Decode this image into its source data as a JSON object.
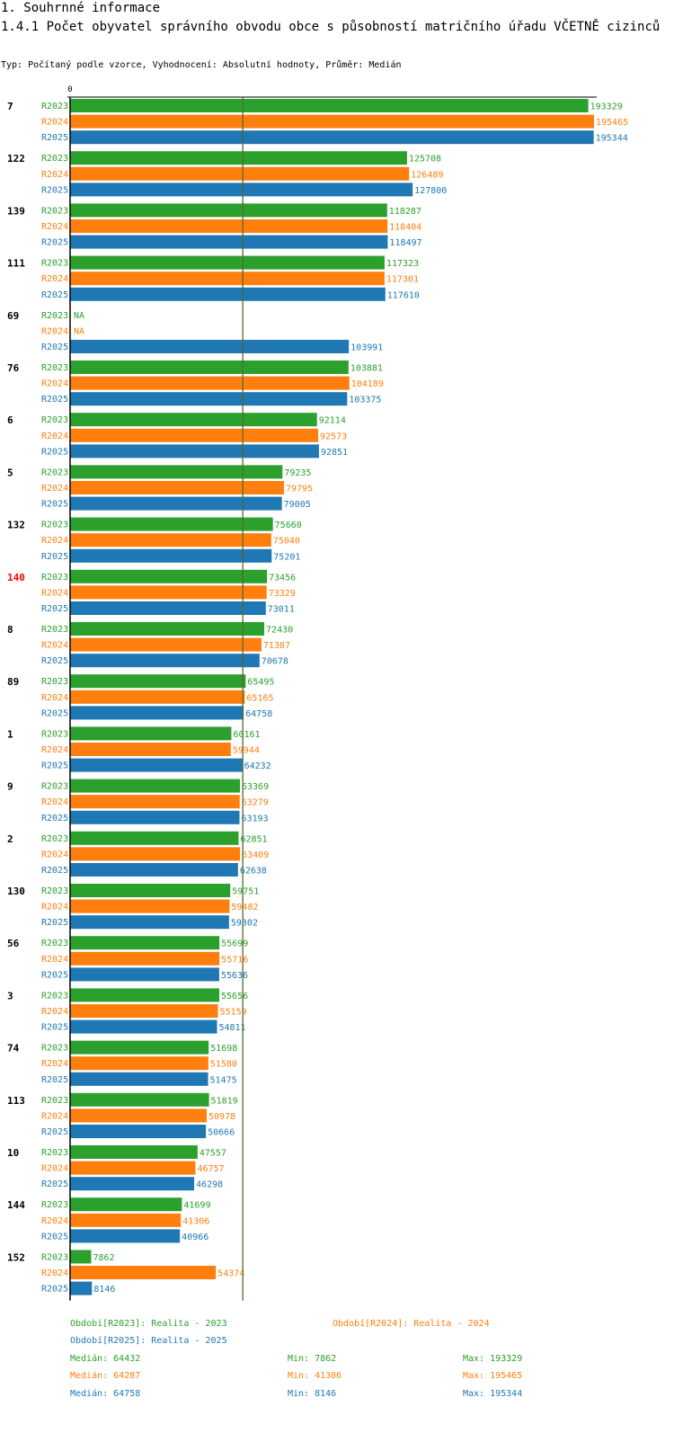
{
  "page": {
    "section_title": "1. Souhrnné informace",
    "chart_title": "1.4.1 Počet obyvatel správního obvodu obce s působností matričního úřadu VČETNĚ cizinců",
    "subtitle": "Typ: Počítaný podle vzorce, Vyhodnocení: Absolutní hodnoty, Průměr: Medián"
  },
  "colors": {
    "R2023": "#2ca02c",
    "R2024": "#ff7f0e",
    "R2025": "#1f77b4",
    "highlight": "#ff0000",
    "text": "#000000",
    "median_line": "#556b2f"
  },
  "chart_data": {
    "type": "bar",
    "orientation": "horizontal",
    "title": "1.4.1 Počet obyvatel správního obvodu obce s působností matričního úřadu VČETNĚ cizinců",
    "x_axis_label": "0",
    "xlim": [
      0,
      200000
    ],
    "median_reference": 64432,
    "highlighted_category": "140",
    "series_names": [
      "R2023",
      "R2024",
      "R2025"
    ],
    "missing_label": "NA",
    "categories": [
      "7",
      "122",
      "139",
      "111",
      "69",
      "76",
      "6",
      "5",
      "132",
      "140",
      "8",
      "89",
      "1",
      "9",
      "2",
      "130",
      "56",
      "3",
      "74",
      "113",
      "10",
      "144",
      "152"
    ],
    "series": [
      {
        "name": "R2023",
        "values": [
          193329,
          125708,
          118287,
          117323,
          null,
          103881,
          92114,
          79235,
          75660,
          73456,
          72430,
          65495,
          60161,
          63369,
          62851,
          59751,
          55699,
          55656,
          51698,
          51819,
          47557,
          41699,
          7862
        ]
      },
      {
        "name": "R2024",
        "values": [
          195465,
          126489,
          118404,
          117301,
          null,
          104189,
          92573,
          79795,
          75040,
          73329,
          71387,
          65165,
          59944,
          63279,
          63409,
          59482,
          55716,
          55159,
          51580,
          50978,
          46757,
          41306,
          54374
        ]
      },
      {
        "name": "R2025",
        "values": [
          195344,
          127800,
          118497,
          117610,
          103991,
          103375,
          92851,
          79005,
          75201,
          73011,
          70678,
          64758,
          64232,
          63193,
          62638,
          59302,
          55636,
          54811,
          51475,
          50666,
          46298,
          40966,
          8146
        ]
      }
    ]
  },
  "legend": {
    "r2023": "Období[R2023]: Realita - 2023",
    "r2024": "Období[R2024]: Realita - 2024",
    "r2025": "Období[R2025]: Realita - 2025"
  },
  "stats": {
    "r2023": {
      "median": "Medián: 64432",
      "min": "Min: 7862",
      "max": "Max: 193329"
    },
    "r2024": {
      "median": "Medián: 64287",
      "min": "Min: 41306",
      "max": "Max: 195465"
    },
    "r2025": {
      "median": "Medián: 64758",
      "min": "Min: 8146",
      "max": "Max: 195344"
    }
  }
}
